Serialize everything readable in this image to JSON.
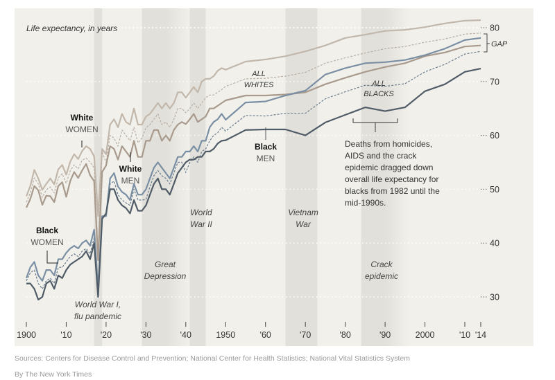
{
  "chart_data": {
    "type": "line",
    "title": "",
    "ylabel": "Life expectancy, in years",
    "xlabel": "",
    "xlim": [
      1900,
      2014
    ],
    "ylim": [
      24,
      85
    ],
    "y_ticks": [
      30,
      40,
      50,
      60,
      70,
      80
    ],
    "y_tick_labels": [
      "30",
      "40",
      "50",
      "60",
      "70",
      "80"
    ],
    "x_ticks": [
      1900,
      1910,
      1920,
      1930,
      1940,
      1950,
      1960,
      1970,
      1980,
      1990,
      2000,
      2010,
      2014
    ],
    "x_tick_labels": [
      "1900",
      "'10",
      "'20",
      "'30",
      "'40",
      "1950",
      "'60",
      "'70",
      "'80",
      "'90",
      "2000",
      "'10",
      "'14"
    ],
    "grid": true,
    "shaded_periods": [
      {
        "name": "World War I, flu pandemic",
        "start": 1917,
        "end": 1919
      },
      {
        "name": "Great Depression",
        "start": 1929,
        "end": 1941
      },
      {
        "name": "World War II",
        "start": 1941,
        "end": 1945
      },
      {
        "name": "Vietnam War",
        "start": 1965,
        "end": 1973
      },
      {
        "name": "Crack epidemic",
        "start": 1984,
        "end": 1996
      }
    ],
    "series": [
      {
        "name": "White women",
        "style": "solid",
        "color": "#c2b7ab",
        "x": [
          1900,
          1901,
          1902,
          1903,
          1904,
          1905,
          1906,
          1907,
          1908,
          1909,
          1910,
          1911,
          1912,
          1913,
          1914,
          1915,
          1916,
          1917,
          1918,
          1919,
          1920,
          1921,
          1922,
          1923,
          1924,
          1925,
          1926,
          1927,
          1928,
          1929,
          1930,
          1931,
          1932,
          1933,
          1934,
          1935,
          1936,
          1937,
          1938,
          1939,
          1940,
          1941,
          1942,
          1943,
          1944,
          1945,
          1946,
          1947,
          1948,
          1949,
          1950,
          1955,
          1960,
          1965,
          1970,
          1975,
          1980,
          1985,
          1990,
          1995,
          2000,
          2005,
          2010,
          2014
        ],
        "values": [
          48.7,
          50.6,
          53.6,
          52,
          49.9,
          51,
          52,
          50.9,
          53.7,
          54.5,
          52.7,
          55.1,
          56.5,
          55.6,
          57.1,
          58,
          57.5,
          56.1,
          45,
          57.5,
          56.5,
          62,
          63,
          61.5,
          64,
          62.5,
          62,
          65,
          62,
          62,
          63.5,
          64,
          65,
          66,
          65,
          66,
          65,
          66,
          68,
          68,
          67,
          68,
          69,
          68,
          70,
          70.5,
          70.5,
          71,
          72,
          72.5,
          72.2,
          73.7,
          74.1,
          74.7,
          75.6,
          76.7,
          78.1,
          78.7,
          79.4,
          79.6,
          80.1,
          80.8,
          81.3,
          81.4
        ]
      },
      {
        "name": "All whites",
        "style": "dashed",
        "color": "#b8aea3",
        "x": [
          1900,
          1901,
          1902,
          1903,
          1904,
          1905,
          1906,
          1907,
          1908,
          1909,
          1910,
          1911,
          1912,
          1913,
          1914,
          1915,
          1916,
          1917,
          1918,
          1919,
          1920,
          1921,
          1922,
          1923,
          1924,
          1925,
          1926,
          1927,
          1928,
          1929,
          1930,
          1931,
          1932,
          1933,
          1934,
          1935,
          1936,
          1937,
          1938,
          1939,
          1940,
          1941,
          1942,
          1943,
          1944,
          1945,
          1946,
          1947,
          1948,
          1949,
          1950,
          1955,
          1960,
          1965,
          1970,
          1975,
          1980,
          1985,
          1990,
          1995,
          2000,
          2005,
          2010,
          2014
        ],
        "values": [
          47.6,
          49.4,
          52.1,
          51,
          48.5,
          49.9,
          50.4,
          49.3,
          52.1,
          52.9,
          51.1,
          53.4,
          54.5,
          53.8,
          55.4,
          55.8,
          55,
          54,
          37.8,
          57,
          54.9,
          60,
          59.5,
          58,
          61,
          60,
          59,
          61.5,
          58.6,
          59.5,
          61.4,
          62,
          63,
          64,
          62,
          62.5,
          61.5,
          63,
          65,
          65,
          64.2,
          65,
          66,
          65,
          66,
          67,
          67.5,
          67.5,
          68,
          68.5,
          69.1,
          70.5,
          70.6,
          71,
          71.7,
          73.4,
          74.4,
          75.3,
          76.1,
          76.5,
          77.3,
          77.9,
          78.8,
          79
        ]
      },
      {
        "name": "White men",
        "style": "solid",
        "color": "#a89a8d",
        "x": [
          1900,
          1901,
          1902,
          1903,
          1904,
          1905,
          1906,
          1907,
          1908,
          1909,
          1910,
          1911,
          1912,
          1913,
          1914,
          1915,
          1916,
          1917,
          1918,
          1919,
          1920,
          1921,
          1922,
          1923,
          1924,
          1925,
          1926,
          1927,
          1928,
          1929,
          1930,
          1931,
          1932,
          1933,
          1934,
          1935,
          1936,
          1937,
          1938,
          1939,
          1940,
          1941,
          1942,
          1943,
          1944,
          1945,
          1946,
          1947,
          1948,
          1949,
          1950,
          1955,
          1960,
          1965,
          1970,
          1975,
          1980,
          1985,
          1990,
          1995,
          2000,
          2005,
          2010,
          2014
        ],
        "values": [
          46.6,
          48.2,
          50.6,
          49.8,
          47.1,
          48.8,
          48.7,
          47.6,
          50.6,
          51.3,
          48.6,
          51.5,
          53.2,
          52.1,
          53.5,
          54.7,
          52.6,
          51.5,
          36.8,
          53.2,
          54.4,
          58,
          57.5,
          55.5,
          58,
          57,
          56,
          59,
          56,
          56,
          59,
          59,
          61,
          61,
          59,
          60,
          59,
          61,
          62,
          62.5,
          62.1,
          63,
          64,
          62.5,
          63,
          63.5,
          65,
          65,
          65.5,
          66,
          66.5,
          67.4,
          67.4,
          67.6,
          68,
          69.5,
          70.7,
          71.8,
          72.7,
          73.4,
          74.7,
          75.4,
          76.5,
          76.7
        ]
      },
      {
        "name": "Black women",
        "style": "solid",
        "color": "#7a8fa3",
        "x": [
          1900,
          1901,
          1902,
          1903,
          1904,
          1905,
          1906,
          1907,
          1908,
          1909,
          1910,
          1911,
          1912,
          1913,
          1914,
          1915,
          1916,
          1917,
          1918,
          1919,
          1920,
          1921,
          1922,
          1923,
          1924,
          1925,
          1926,
          1927,
          1928,
          1929,
          1930,
          1931,
          1932,
          1933,
          1934,
          1935,
          1936,
          1937,
          1938,
          1939,
          1940,
          1941,
          1942,
          1943,
          1944,
          1945,
          1946,
          1947,
          1948,
          1949,
          1950,
          1955,
          1960,
          1965,
          1970,
          1975,
          1980,
          1985,
          1990,
          1995,
          2000,
          2005,
          2010,
          2014
        ],
        "values": [
          33.5,
          35.5,
          36.5,
          34,
          33,
          35,
          35,
          34,
          37,
          37,
          38.2,
          39,
          39.5,
          39,
          40,
          40.5,
          39.5,
          42.5,
          31.5,
          45,
          45,
          52,
          53,
          50.5,
          49.5,
          49,
          48,
          51,
          49,
          49,
          50,
          52,
          54,
          55,
          54,
          53,
          52,
          54,
          56,
          56,
          57,
          57,
          58,
          57,
          59,
          59,
          61.5,
          62.5,
          63,
          64,
          62.9,
          66.1,
          66.3,
          67.4,
          68.3,
          71.3,
          72.5,
          73.4,
          73.6,
          74,
          74.9,
          76.1,
          77.7,
          78.1
        ]
      },
      {
        "name": "All blacks",
        "style": "dashed",
        "color": "#6a7c8d",
        "x": [
          1900,
          1901,
          1902,
          1903,
          1904,
          1905,
          1906,
          1907,
          1908,
          1909,
          1910,
          1911,
          1912,
          1913,
          1914,
          1915,
          1916,
          1917,
          1918,
          1919,
          1920,
          1921,
          1922,
          1923,
          1924,
          1925,
          1926,
          1927,
          1928,
          1929,
          1930,
          1931,
          1932,
          1933,
          1934,
          1935,
          1936,
          1937,
          1938,
          1939,
          1940,
          1941,
          1942,
          1943,
          1944,
          1945,
          1946,
          1947,
          1948,
          1949,
          1950,
          1955,
          1960,
          1965,
          1970,
          1975,
          1980,
          1985,
          1990,
          1995,
          2000,
          2005,
          2010,
          2014
        ],
        "values": [
          33,
          34.5,
          35,
          32.5,
          31.5,
          33,
          33.5,
          32.5,
          35.5,
          35.5,
          36.5,
          37.5,
          38,
          37.5,
          38.5,
          39,
          38,
          41,
          30.5,
          44.5,
          45.3,
          51,
          51.5,
          49,
          48,
          47.5,
          47,
          50,
          48,
          48,
          48.1,
          50.5,
          52.5,
          53.5,
          52.5,
          52,
          51,
          53,
          55,
          55,
          53.1,
          55,
          56,
          55,
          57,
          57.5,
          59,
          60,
          60.5,
          61.5,
          60.8,
          63.7,
          63.6,
          64.1,
          64.1,
          66.8,
          68.1,
          69.3,
          69.1,
          69.6,
          71.8,
          73.2,
          75.1,
          75.6
        ]
      },
      {
        "name": "Black men",
        "style": "solid",
        "color": "#4f5b66",
        "x": [
          1900,
          1901,
          1902,
          1903,
          1904,
          1905,
          1906,
          1907,
          1908,
          1909,
          1910,
          1911,
          1912,
          1913,
          1914,
          1915,
          1916,
          1917,
          1918,
          1919,
          1920,
          1921,
          1922,
          1923,
          1924,
          1925,
          1926,
          1927,
          1928,
          1929,
          1930,
          1931,
          1932,
          1933,
          1934,
          1935,
          1936,
          1937,
          1938,
          1939,
          1940,
          1941,
          1942,
          1943,
          1944,
          1945,
          1946,
          1947,
          1948,
          1949,
          1950,
          1955,
          1960,
          1965,
          1970,
          1975,
          1980,
          1985,
          1990,
          1995,
          2000,
          2005,
          2010,
          2014
        ],
        "values": [
          32.5,
          32.5,
          31.5,
          29.5,
          30,
          32.5,
          33,
          31.5,
          34,
          33.5,
          35,
          36,
          36.5,
          37,
          37.5,
          38.5,
          37,
          40,
          30,
          44.5,
          45.5,
          50,
          50,
          48,
          47,
          46.5,
          45.5,
          48,
          46,
          46,
          47,
          49,
          51,
          52,
          50,
          50,
          49,
          51,
          53,
          54,
          55,
          55.5,
          55.5,
          56,
          56,
          57,
          57,
          57.5,
          58.5,
          59,
          59.1,
          61,
          61.1,
          61.1,
          60,
          62.4,
          63.8,
          65.2,
          64.5,
          65.2,
          68.2,
          69.5,
          71.8,
          72.4
        ]
      }
    ],
    "annotations": [
      {
        "text_bold": "White",
        "text": "WOMEN"
      },
      {
        "text_bold": "White",
        "text": "MEN"
      },
      {
        "text_bold": "Black",
        "text": "WOMEN"
      },
      {
        "text_bold": "Black",
        "text": "MEN"
      },
      {
        "text": "ALL WHITES"
      },
      {
        "text": "ALL BLACKS"
      },
      {
        "text": "GAP"
      },
      {
        "text": "Deaths from homicides, AIDS and the crack epidemic dragged down overall life expectancy for blacks from 1982 until the mid-1990s.",
        "start": 1982,
        "end": 1995
      }
    ]
  },
  "labels": {
    "y_title": "Life expectancy, in years",
    "white_women_bold": "White",
    "white_women": "WOMEN",
    "white_men_bold": "White",
    "white_men": "MEN",
    "black_women_bold": "Black",
    "black_women": "WOMEN",
    "black_men_bold": "Black",
    "black_men": "MEN",
    "all_whites_1": "ALL",
    "all_whites_2": "WHITES",
    "all_blacks_1": "ALL",
    "all_blacks_2": "BLACKS",
    "gap": "GAP",
    "ww1_1": "World War I,",
    "ww1_2": "flu pandemic",
    "depression_1": "Great",
    "depression_2": "Depression",
    "ww2_1": "World",
    "ww2_2": "War II",
    "vietnam_1": "Vietnam",
    "vietnam_2": "War",
    "crack_1": "Crack",
    "crack_2": "epidemic",
    "note_lines": [
      "Deaths from homicides,",
      "AIDS and the crack",
      "epidemic dragged down",
      "overall life expectancy for",
      "blacks from 1982 until the",
      "mid-1990s."
    ]
  },
  "footer": {
    "sources": "Sources: Centers for Disease Control and Prevention; National Center for Health Statistics; National Vital Statistics System",
    "byline": "By The New York Times"
  }
}
